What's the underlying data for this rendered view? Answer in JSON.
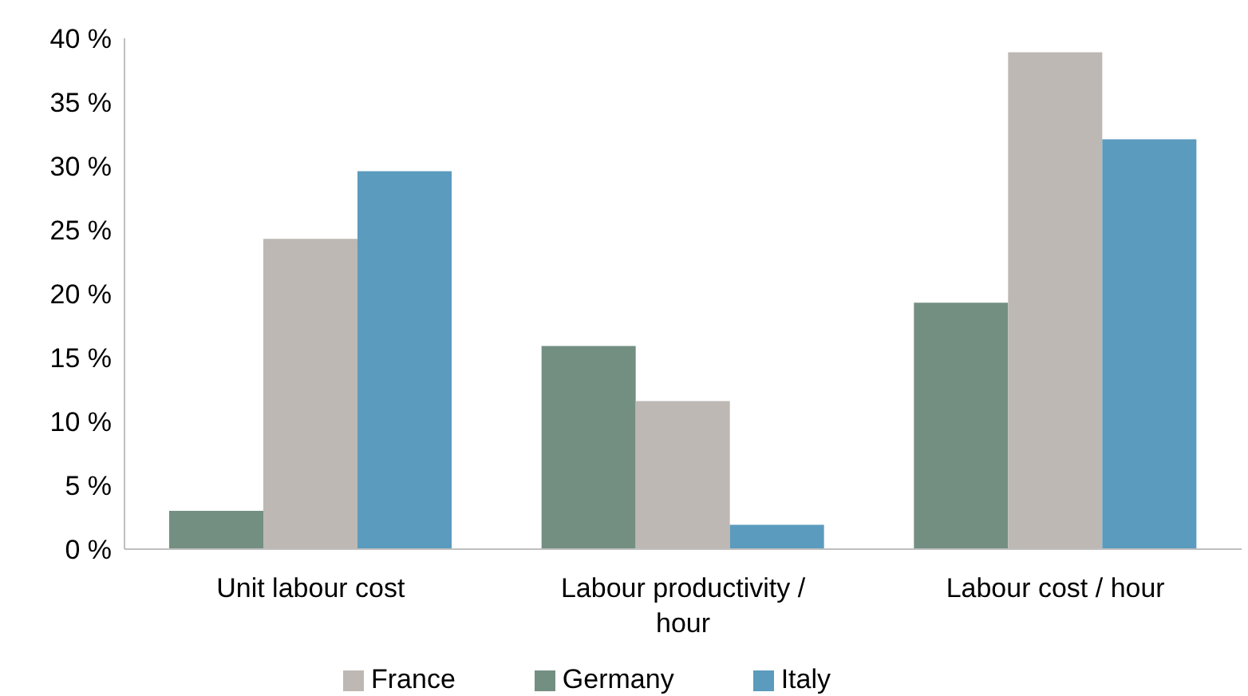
{
  "chart_data": {
    "type": "bar",
    "categories": [
      "Unit labour cost",
      "Labour productivity / hour",
      "Labour cost / hour"
    ],
    "series": [
      {
        "name": "Germany",
        "color": "#738f82",
        "values": [
          3.0,
          15.9,
          19.3
        ]
      },
      {
        "name": "France",
        "color": "#bdb8b3",
        "values": [
          24.3,
          11.6,
          38.9
        ]
      },
      {
        "name": "Italy",
        "color": "#5b9bbe",
        "values": [
          29.6,
          1.9,
          32.1
        ]
      }
    ],
    "ylim": [
      0,
      40
    ],
    "yticks": [
      {
        "value": 0,
        "label": "0 %"
      },
      {
        "value": 5,
        "label": "5 %"
      },
      {
        "value": 10,
        "label": "10 %"
      },
      {
        "value": 15,
        "label": "15 %"
      },
      {
        "value": 20,
        "label": "20 %"
      },
      {
        "value": 25,
        "label": "25 %"
      },
      {
        "value": 30,
        "label": "30 %"
      },
      {
        "value": 35,
        "label": "35 %"
      },
      {
        "value": 40,
        "label": "40 %"
      }
    ],
    "grid": false,
    "legend": "bottom"
  }
}
